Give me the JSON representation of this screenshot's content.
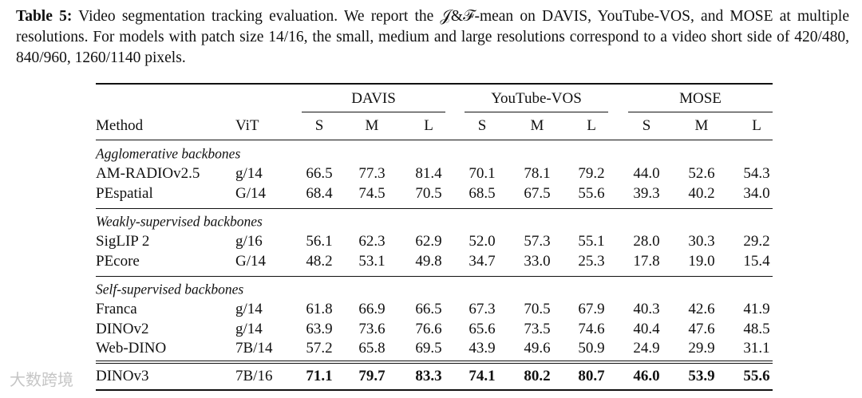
{
  "caption": {
    "label": "Table 5:",
    "text": "Video segmentation tracking evaluation. We report the 𝒥&ℱ-mean on DAVIS, YouTube-VOS, and MOSE at multiple resolutions. For models with patch size 14/16, the small, medium and large resolutions correspond to a video short side of 420/480, 840/960, 1260/1140 pixels."
  },
  "table": {
    "groups": [
      "DAVIS",
      "YouTube-VOS",
      "MOSE"
    ],
    "columns": [
      "Method",
      "ViT",
      "S",
      "M",
      "L",
      "S",
      "M",
      "L",
      "S",
      "M",
      "L"
    ],
    "sections": [
      {
        "title": "Agglomerative backbones",
        "rows": [
          [
            "AM-RADIOv2.5",
            "g/14",
            "66.5",
            "77.3",
            "81.4",
            "70.1",
            "78.1",
            "79.2",
            "44.0",
            "52.6",
            "54.3"
          ],
          [
            "PEspatial",
            "G/14",
            "68.4",
            "74.5",
            "70.5",
            "68.5",
            "67.5",
            "55.6",
            "39.3",
            "40.2",
            "34.0"
          ]
        ]
      },
      {
        "title": "Weakly-supervised backbones",
        "rows": [
          [
            "SigLIP 2",
            "g/16",
            "56.1",
            "62.3",
            "62.9",
            "52.0",
            "57.3",
            "55.1",
            "28.0",
            "30.3",
            "29.2"
          ],
          [
            "PEcore",
            "G/14",
            "48.2",
            "53.1",
            "49.8",
            "34.7",
            "33.0",
            "25.3",
            "17.8",
            "19.0",
            "15.4"
          ]
        ]
      },
      {
        "title": "Self-supervised backbones",
        "rows": [
          [
            "Franca",
            "g/14",
            "61.8",
            "66.9",
            "66.5",
            "67.3",
            "70.5",
            "67.9",
            "40.3",
            "42.6",
            "41.9"
          ],
          [
            "DINOv2",
            "g/14",
            "63.9",
            "73.6",
            "76.6",
            "65.6",
            "73.5",
            "74.6",
            "40.4",
            "47.6",
            "48.5"
          ],
          [
            "Web-DINO",
            "7B/14",
            "57.2",
            "65.8",
            "69.5",
            "43.9",
            "49.6",
            "50.9",
            "24.9",
            "29.9",
            "31.1"
          ]
        ]
      }
    ],
    "final_row": [
      "DINOv3",
      "7B/16",
      "71.1",
      "79.7",
      "83.3",
      "74.1",
      "80.2",
      "80.7",
      "46.0",
      "53.9",
      "55.6"
    ]
  },
  "watermark": "大数跨境"
}
